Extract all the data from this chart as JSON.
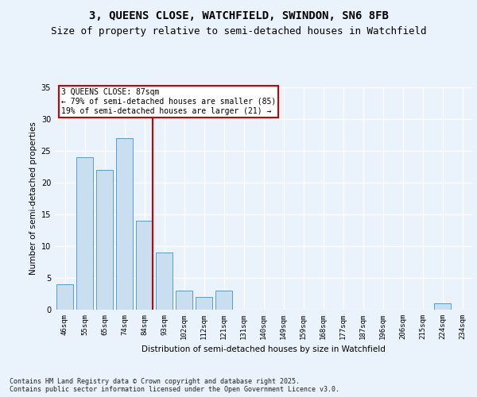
{
  "title_line1": "3, QUEENS CLOSE, WATCHFIELD, SWINDON, SN6 8FB",
  "title_line2": "Size of property relative to semi-detached houses in Watchfield",
  "xlabel": "Distribution of semi-detached houses by size in Watchfield",
  "ylabel": "Number of semi-detached properties",
  "categories": [
    "46sqm",
    "55sqm",
    "65sqm",
    "74sqm",
    "84sqm",
    "93sqm",
    "102sqm",
    "112sqm",
    "121sqm",
    "131sqm",
    "140sqm",
    "149sqm",
    "159sqm",
    "168sqm",
    "177sqm",
    "187sqm",
    "196sqm",
    "206sqm",
    "215sqm",
    "224sqm",
    "234sqm"
  ],
  "values": [
    4,
    24,
    22,
    27,
    14,
    9,
    3,
    2,
    3,
    0,
    0,
    0,
    0,
    0,
    0,
    0,
    0,
    0,
    0,
    1,
    0
  ],
  "bar_color": "#c9dff0",
  "bar_edge_color": "#5b9bd5",
  "annotation_text": "3 QUEENS CLOSE: 87sqm\n← 79% of semi-detached houses are smaller (85)\n19% of semi-detached houses are larger (21) →",
  "annotation_box_color": "#ffffff",
  "annotation_box_edge": "#cc0000",
  "vline_color": "#cc0000",
  "ylim": [
    0,
    35
  ],
  "yticks": [
    0,
    5,
    10,
    15,
    20,
    25,
    30,
    35
  ],
  "footer_text": "Contains HM Land Registry data © Crown copyright and database right 2025.\nContains public sector information licensed under the Open Government Licence v3.0.",
  "bg_color": "#eaf2fb",
  "plot_bg_color": "#eaf2fb",
  "grid_color": "#ffffff",
  "title_fontsize": 10,
  "subtitle_fontsize": 9,
  "tick_fontsize": 6.5,
  "label_fontsize": 8,
  "footer_fontsize": 6
}
